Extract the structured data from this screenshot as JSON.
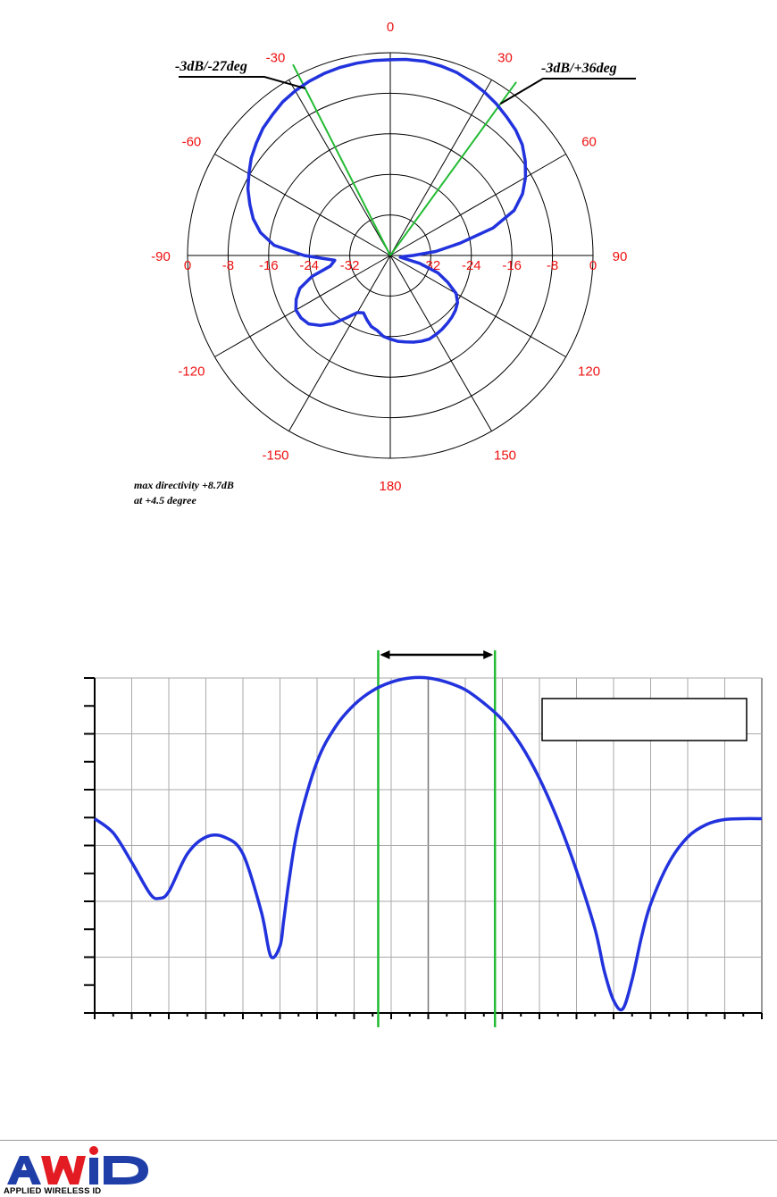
{
  "chart_data": [
    {
      "type": "polar",
      "angle_labels": [
        "0",
        "30",
        "60",
        "90",
        "120",
        "150",
        "180",
        "-150",
        "-120",
        "-90",
        "-60",
        "-30"
      ],
      "radial_ticks_left": [
        "0",
        "-8",
        "-16",
        "-24",
        "-32"
      ],
      "radial_ticks_right": [
        "-32",
        "-24",
        "-16",
        "-8",
        "0"
      ],
      "rlim": [
        -40,
        0
      ],
      "grid": true,
      "series": [
        {
          "color": "#2233dd",
          "theta_deg": [
            0,
            4.5,
            10,
            15,
            20,
            25,
            30,
            35,
            40,
            45,
            50,
            55,
            60,
            65,
            70,
            75,
            80,
            85,
            90,
            95,
            100,
            105,
            110,
            115,
            120,
            125,
            130,
            135,
            140,
            145,
            150,
            155,
            160,
            165,
            170,
            175,
            180,
            185,
            190,
            195,
            200,
            205,
            210,
            215,
            220,
            225,
            230,
            235,
            240,
            245,
            250,
            255,
            260,
            265,
            270,
            275,
            280,
            285,
            290,
            295,
            300,
            305,
            310,
            315,
            320,
            325,
            330,
            335,
            340,
            345,
            350,
            355,
            360
          ],
          "r_db": [
            -1.4,
            -1.2,
            -1.1,
            -1.3,
            -1.6,
            -2.2,
            -2.8,
            -3.5,
            -4.3,
            -5.0,
            -6.0,
            -7.5,
            -9.2,
            -11.2,
            -14.0,
            -19.0,
            -26.0,
            -31.0,
            -35.5,
            -37.5,
            -38.0,
            -34.0,
            -30.0,
            -27.5,
            -25.0,
            -23.8,
            -23.2,
            -22.8,
            -22.5,
            -22.2,
            -22.0,
            -21.8,
            -22.0,
            -22.3,
            -22.7,
            -23.0,
            -23.5,
            -24.0,
            -25.0,
            -25.5,
            -26.5,
            -27.5,
            -27.0,
            -25.0,
            -22.5,
            -20.5,
            -19.0,
            -18.5,
            -18.5,
            -19.5,
            -21.0,
            -24.0,
            -28.0,
            -29.0,
            -23.0,
            -17.0,
            -14.0,
            -12.0,
            -10.5,
            -9.0,
            -7.8,
            -6.5,
            -5.5,
            -4.5,
            -3.8,
            -3.0,
            -2.5,
            -2.1,
            -1.8,
            -1.6,
            -1.5,
            -1.4,
            -1.4
          ]
        }
      ],
      "beam_lines_deg": [
        -27,
        36
      ],
      "annotations": {
        "beam_left": "-3dB/-27deg",
        "beam_right": "-3dB/+36deg",
        "max_line1": "max directivity +8.7dB",
        "max_line2": "at +4.5 degree"
      }
    },
    {
      "type": "line",
      "xlim": [
        -180,
        180
      ],
      "ylim": [
        -40,
        0
      ],
      "grid": true,
      "x_major_step": 20,
      "x_minor_step": 10,
      "y_major_step": 6.67,
      "y_minor_step": 3.33,
      "series": [
        {
          "color": "#2233dd",
          "x": [
            -180,
            -170,
            -160,
            -150,
            -145,
            -140,
            -130,
            -120,
            -110,
            -100,
            -90,
            -85,
            -80,
            -78,
            -75,
            -70,
            -60,
            -50,
            -40,
            -30,
            -20,
            -10,
            0,
            10,
            20,
            30,
            40,
            50,
            60,
            70,
            80,
            90,
            95,
            100,
            105,
            110,
            115,
            120,
            130,
            140,
            150,
            160,
            170,
            180
          ],
          "y": [
            -16.8,
            -18.5,
            -22.0,
            -25.8,
            -26.3,
            -25.5,
            -21.0,
            -19.0,
            -19.0,
            -21.0,
            -28.0,
            -33.2,
            -32.0,
            -29.0,
            -24.0,
            -17.5,
            -10.0,
            -5.8,
            -3.2,
            -1.5,
            -0.5,
            0.0,
            0.0,
            -0.5,
            -1.4,
            -3.0,
            -5.0,
            -8.0,
            -12.0,
            -17.0,
            -23.0,
            -30.0,
            -35.0,
            -38.5,
            -39.5,
            -36.0,
            -31.0,
            -27.0,
            -22.0,
            -19.0,
            -17.5,
            -16.9,
            -16.8,
            -16.8
          ]
        }
      ],
      "beamwidth_markers_x": [
        -27,
        36
      ],
      "legend_box_text": ""
    }
  ],
  "logo": {
    "brand": "AWID",
    "tagline": "APPLIED WIRELESS ID",
    "colors": {
      "blue": "#1f3ea8",
      "red": "#e31b23"
    }
  }
}
